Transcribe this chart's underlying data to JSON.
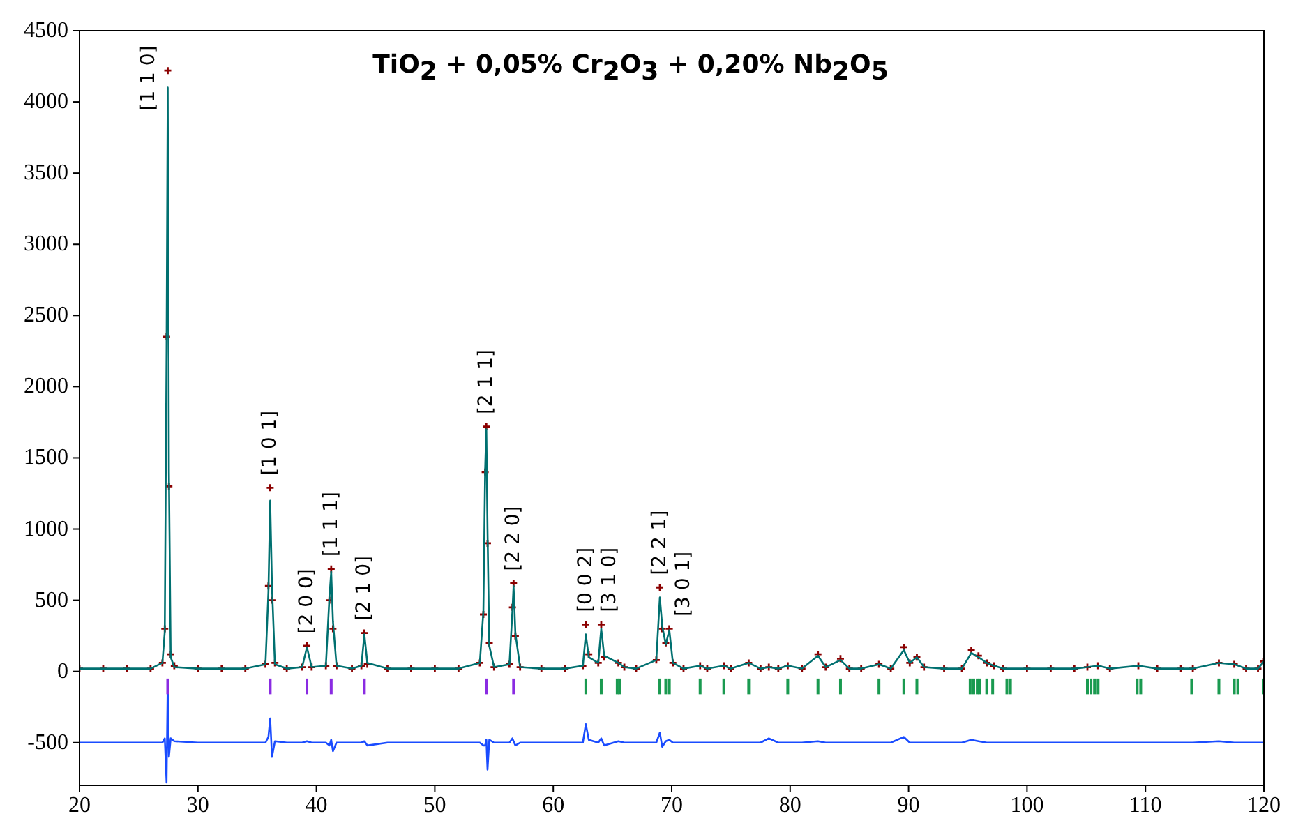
{
  "chart_data": {
    "type": "line",
    "title": "TiO$_{2}$ + 0,05% Cr$_{2}$O$_{3}$ + 0,20% Nb$_{2}$O$_{5}$",
    "x": [
      20,
      22,
      24,
      26,
      27.0,
      27.2,
      27.35,
      27.45,
      27.55,
      27.7,
      28.0,
      30,
      32,
      34,
      35.7,
      35.95,
      36.1,
      36.25,
      36.5,
      37.5,
      38.8,
      39.2,
      39.6,
      40.8,
      41.1,
      41.25,
      41.4,
      41.7,
      43,
      43.8,
      44.05,
      44.3,
      46,
      48,
      50,
      52,
      53.8,
      54.1,
      54.25,
      54.35,
      54.45,
      54.6,
      55,
      56.3,
      56.55,
      56.65,
      56.8,
      57.2,
      59,
      61,
      62.5,
      62.75,
      63.0,
      63.8,
      64.05,
      64.3,
      65.5,
      66,
      67,
      68.7,
      69.0,
      69.2,
      69.5,
      69.8,
      70.1,
      71,
      72.4,
      73,
      74.4,
      75,
      76.5,
      77.5,
      78.2,
      79,
      79.8,
      81,
      82.35,
      83,
      84.25,
      85,
      86,
      87.5,
      88.5,
      89.6,
      90.1,
      90.7,
      91.3,
      93,
      94.5,
      95.3,
      95.9,
      96.6,
      97.2,
      98,
      100,
      102,
      104,
      105.1,
      106,
      107,
      109.4,
      111,
      113,
      114,
      116.2,
      117.5,
      118.5,
      119.5,
      120
    ],
    "series": [
      {
        "type": "scatter",
        "color": "#8b0000",
        "marker": "cross",
        "values": [
          20,
          20,
          20,
          20,
          60,
          300,
          2350,
          4220,
          1300,
          120,
          40,
          20,
          20,
          20,
          50,
          600,
          1290,
          500,
          60,
          20,
          30,
          180,
          30,
          40,
          500,
          720,
          300,
          40,
          20,
          40,
          270,
          50,
          20,
          20,
          20,
          20,
          60,
          400,
          1400,
          1720,
          900,
          200,
          30,
          50,
          450,
          620,
          250,
          30,
          20,
          20,
          40,
          330,
          120,
          60,
          330,
          100,
          60,
          30,
          20,
          80,
          590,
          300,
          200,
          300,
          60,
          20,
          40,
          20,
          40,
          20,
          60,
          20,
          30,
          20,
          40,
          20,
          120,
          30,
          90,
          20,
          20,
          50,
          20,
          170,
          60,
          100,
          30,
          20,
          20,
          150,
          110,
          60,
          40,
          20,
          20,
          20,
          20,
          30,
          40,
          20,
          40,
          20,
          20,
          20,
          60,
          50,
          20,
          20,
          70
        ]
      },
      {
        "color": "#007070",
        "line_style": "solid",
        "values": [
          20,
          20,
          20,
          20,
          60,
          280,
          2250,
          4100,
          1400,
          100,
          30,
          20,
          20,
          20,
          50,
          560,
          1200,
          600,
          50,
          20,
          30,
          170,
          30,
          40,
          520,
          700,
          350,
          40,
          20,
          40,
          260,
          60,
          20,
          20,
          20,
          20,
          60,
          420,
          1420,
          1700,
          1000,
          180,
          30,
          50,
          420,
          600,
          270,
          30,
          20,
          20,
          40,
          260,
          100,
          60,
          300,
          110,
          60,
          30,
          20,
          80,
          520,
          320,
          190,
          290,
          60,
          20,
          40,
          20,
          40,
          20,
          60,
          20,
          30,
          20,
          40,
          20,
          110,
          30,
          80,
          20,
          20,
          50,
          20,
          150,
          60,
          100,
          30,
          20,
          20,
          130,
          100,
          60,
          40,
          20,
          20,
          20,
          20,
          30,
          40,
          20,
          40,
          20,
          20,
          20,
          60,
          50,
          20,
          20,
          70
        ]
      },
      {
        "color": "#1a4cff",
        "line_style": "solid",
        "values": [
          -500,
          -500,
          -500,
          -500,
          -500,
          -470,
          -780,
          -60,
          -600,
          -470,
          -490,
          -500,
          -500,
          -500,
          -500,
          -460,
          -330,
          -600,
          -490,
          -500,
          -500,
          -490,
          -500,
          -500,
          -520,
          -480,
          -560,
          -500,
          -500,
          -500,
          -490,
          -520,
          -500,
          -500,
          -500,
          -500,
          -500,
          -520,
          -520,
          -480,
          -690,
          -480,
          -500,
          -500,
          -470,
          -490,
          -520,
          -500,
          -500,
          -500,
          -500,
          -370,
          -480,
          -500,
          -470,
          -520,
          -490,
          -500,
          -500,
          -500,
          -430,
          -530,
          -490,
          -480,
          -500,
          -500,
          -500,
          -500,
          -500,
          -500,
          -500,
          -500,
          -470,
          -500,
          -500,
          -500,
          -490,
          -500,
          -500,
          -500,
          -500,
          -500,
          -500,
          -460,
          -500,
          -500,
          -500,
          -500,
          -500,
          -480,
          -490,
          -500,
          -500,
          -500,
          -500,
          -500,
          -500,
          -500,
          -500,
          -500,
          -500,
          -500,
          -500,
          -500,
          -490,
          -500,
          -500,
          -500,
          -500
        ]
      },
      {
        "type": "bar",
        "color": "#8a2be2",
        "x": [
          27.45,
          36.1,
          39.2,
          41.25,
          44.05,
          54.35,
          56.65
        ],
        "values": [
          110,
          110,
          110,
          110,
          110,
          110,
          110
        ],
        "base": [
          -160,
          -160,
          -160,
          -160,
          -160,
          -160,
          -160
        ]
      },
      {
        "type": "bar",
        "color": "#1a9a50",
        "x": [
          62.75,
          64.05,
          65.4,
          65.6,
          69.0,
          69.5,
          69.8,
          72.4,
          74.4,
          76.5,
          79.8,
          82.35,
          84.25,
          87.5,
          89.6,
          90.7,
          95.2,
          95.5,
          95.8,
          96.0,
          96.6,
          97.1,
          98.3,
          98.6,
          105.1,
          105.4,
          105.7,
          106.0,
          109.3,
          109.6,
          113.9,
          116.2,
          117.5,
          117.8,
          120
        ],
        "values": [
          110,
          110,
          110,
          110,
          110,
          110,
          110,
          110,
          110,
          110,
          110,
          110,
          110,
          110,
          110,
          110,
          110,
          110,
          110,
          110,
          110,
          110,
          110,
          110,
          110,
          110,
          110,
          110,
          110,
          110,
          110,
          110,
          110,
          110,
          110
        ],
        "base": [
          -160,
          -160,
          -160,
          -160,
          -160,
          -160,
          -160,
          -160,
          -160,
          -160,
          -160,
          -160,
          -160,
          -160,
          -160,
          -160,
          -160,
          -160,
          -160,
          -160,
          -160,
          -160,
          -160,
          -160,
          -160,
          -160,
          -160,
          -160,
          -160,
          -160,
          -160,
          -160,
          -160,
          -160,
          -160
        ]
      }
    ],
    "annotations": [
      {
        "text": "[1 1 0]",
        "x": 27.45,
        "y": 4220
      },
      {
        "text": "[1 0 1]",
        "x": 36.1,
        "y": 1290
      },
      {
        "text": "[2 0 0]",
        "x": 39.2,
        "y": 180
      },
      {
        "text": "[1 1 1]",
        "x": 41.25,
        "y": 720
      },
      {
        "text": "[2 1 0]",
        "x": 44.05,
        "y": 270
      },
      {
        "text": "[2 1 1]",
        "x": 54.35,
        "y": 1720
      },
      {
        "text": "[2 2 0]",
        "x": 56.65,
        "y": 620
      },
      {
        "text": "[0 0 2]",
        "x": 62.75,
        "y": 330
      },
      {
        "text": "[3 1 0]",
        "x": 64.05,
        "y": 330
      },
      {
        "text": "[2 2 1]",
        "x": 69.0,
        "y": 590
      },
      {
        "text": "[3 0 1]",
        "x": 69.8,
        "y": 300
      }
    ],
    "xlim": [
      20,
      120
    ],
    "xticks": [
      20,
      30,
      40,
      50,
      60,
      70,
      80,
      90,
      100,
      110,
      120
    ],
    "ylim": [
      -800,
      4500
    ],
    "yticks": [
      -500,
      0,
      500,
      1000,
      1500,
      2000,
      2500,
      3000,
      3500,
      4000,
      4500
    ],
    "grid": false
  }
}
